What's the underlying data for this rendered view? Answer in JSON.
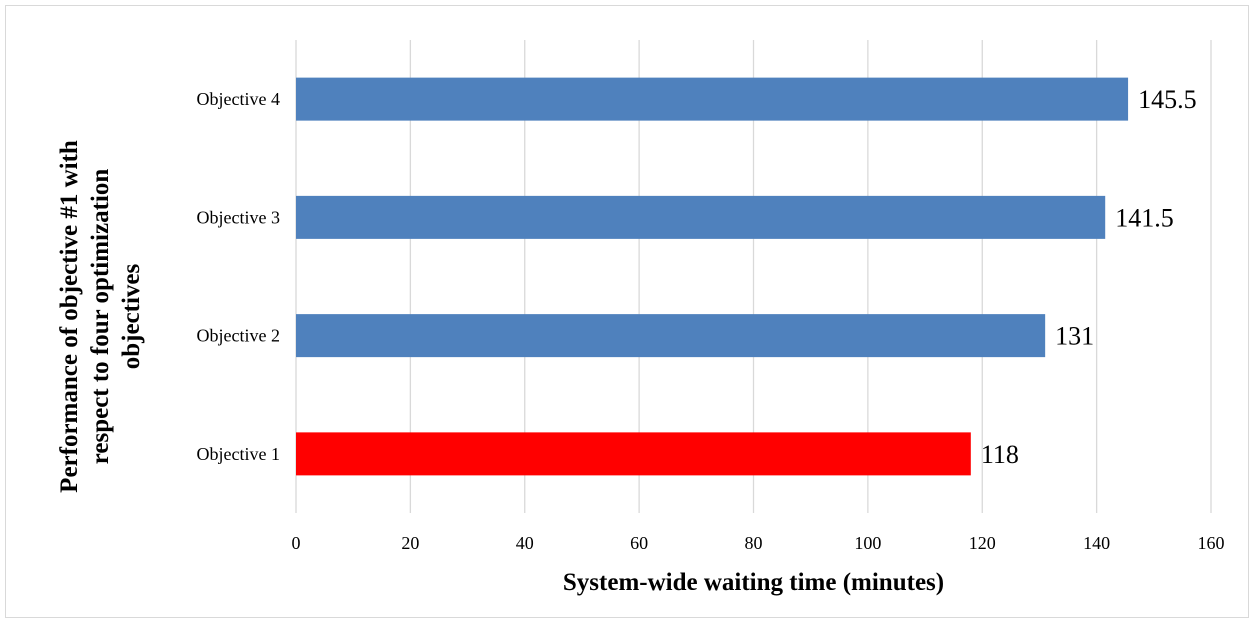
{
  "chart_data": {
    "type": "bar",
    "orientation": "horizontal",
    "title": "",
    "xlabel": "System-wide waiting time (minutes)",
    "ylabel_lines": [
      "Performance of objective #1 with",
      "respect to four optimization",
      "objectives"
    ],
    "categories": [
      "Objective 1",
      "Objective 2",
      "Objective 3",
      "Objective 4"
    ],
    "values": [
      118,
      131,
      141.5,
      145.5
    ],
    "value_labels": [
      "118",
      "131",
      "141.5",
      "145.5"
    ],
    "bar_colors": [
      "#ff0000",
      "#4f81bd",
      "#4f81bd",
      "#4f81bd"
    ],
    "xlim": [
      0,
      160
    ],
    "xticks": [
      0,
      20,
      40,
      60,
      80,
      100,
      120,
      140,
      160
    ],
    "grid": "vertical",
    "legend": "none",
    "gridline_color": "#d9d9d9"
  }
}
